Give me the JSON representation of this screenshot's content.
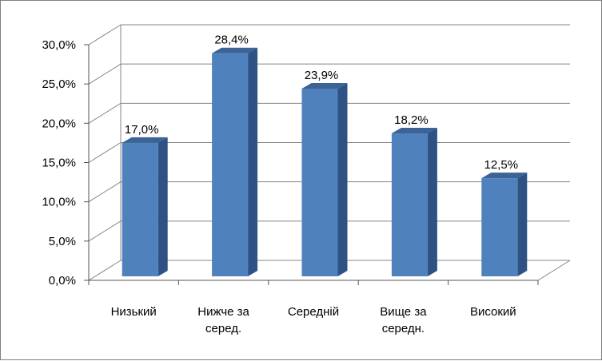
{
  "chart_data": {
    "type": "bar",
    "categories": [
      [
        "Низький"
      ],
      [
        "Нижче за",
        "серед."
      ],
      [
        "Середній"
      ],
      [
        "Вище за",
        "середн."
      ],
      [
        "Високий"
      ]
    ],
    "values": [
      17.0,
      28.4,
      23.9,
      18.2,
      12.5
    ],
    "data_labels": [
      "17,0%",
      "28,4%",
      "23,9%",
      "18,2%",
      "12,5%"
    ],
    "y_ticks": [
      0,
      5,
      10,
      15,
      20,
      25,
      30
    ],
    "y_tick_labels": [
      "0,0%",
      "5,0%",
      "10,0%",
      "15,0%",
      "20,0%",
      "25,0%",
      "30,0%"
    ],
    "ylim": [
      0,
      30
    ],
    "style": "3d-bar",
    "grid": true,
    "legend": "none",
    "colors": {
      "bar_front": "#4f81bd",
      "bar_side": "#2f5285",
      "bar_top": "#3c6296",
      "grid": "#868686",
      "axis": "#555555"
    }
  }
}
